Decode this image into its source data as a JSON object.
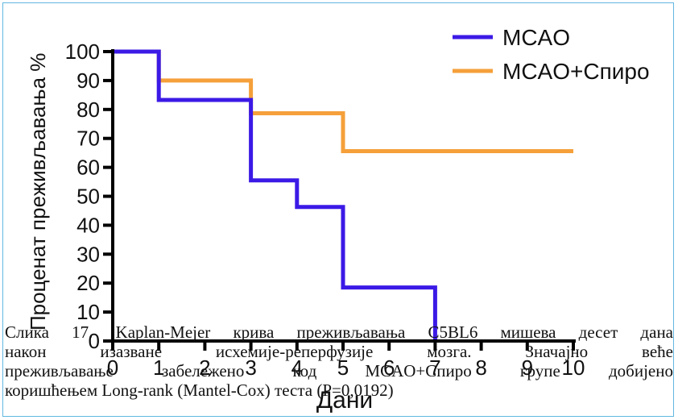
{
  "chart_data": {
    "type": "line",
    "step": true,
    "xlabel": "Дани",
    "ylabel": "Проценат преживљавања %",
    "xlim": [
      0,
      10
    ],
    "ylim": [
      0,
      100
    ],
    "x_ticks": [
      "0",
      "1",
      "2",
      "3",
      "4",
      "5",
      "6",
      "7",
      "8",
      "9",
      "10"
    ],
    "y_ticks": [
      "0",
      "10",
      "20",
      "30",
      "40",
      "50",
      "60",
      "70",
      "80",
      "90",
      "100"
    ],
    "legend_position": "top-right",
    "series": [
      {
        "name": "MCAO",
        "color": "#3b1ae6",
        "x": [
          0,
          1,
          3,
          4,
          5,
          7
        ],
        "y": [
          100,
          83.3,
          55.5,
          46.3,
          18.5,
          0
        ]
      },
      {
        "name": "MCAO+Спиро",
        "color": "#f5a03a",
        "x": [
          0,
          1,
          3,
          5,
          10
        ],
        "y": [
          100,
          90,
          78.7,
          65.6,
          65.6
        ]
      }
    ]
  },
  "caption": {
    "lines": [
      "Слика 17. Kaplan-Mejer крива преживљавања C5BL6 мишева десет дана",
      "након изазване исхемије-реперфузије мозга. Значајно веће",
      "преживљавање забележено код MCAO+Спиро групе добијено",
      "коришћењем Long-rank (Mantel-Cox) теста (P=0,0192)"
    ]
  }
}
